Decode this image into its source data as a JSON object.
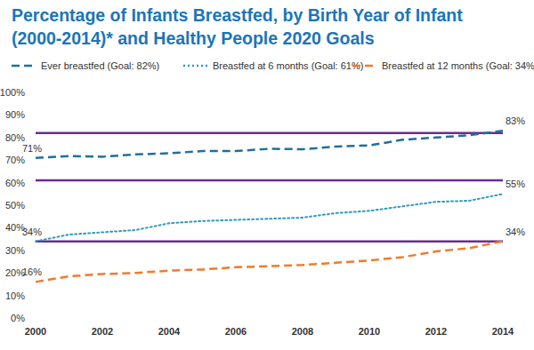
{
  "chart_data": {
    "type": "line",
    "title": [
      "Percentage of Infants Breastfed, by Birth Year of Infant",
      "(2000-2014)* and Healthy People 2020 Goals"
    ],
    "x": [
      2000,
      2001,
      2002,
      2003,
      2004,
      2005,
      2006,
      2007,
      2008,
      2009,
      2010,
      2011,
      2012,
      2013,
      2014
    ],
    "series": [
      {
        "name": "Ever breastfed (Goal: 82%)",
        "color": "#1f6f9f",
        "line_style": "dashed",
        "goal": 82,
        "values": [
          71,
          71.8,
          71.5,
          72.5,
          73,
          74,
          74,
          75,
          74.8,
          76,
          76.5,
          79,
          80,
          81,
          83
        ]
      },
      {
        "name": "Breastfed at 6 months (Goal: 61%)",
        "color": "#2f9bbf",
        "line_style": "dotted",
        "goal": 61,
        "values": [
          34,
          37,
          38,
          39,
          42,
          43,
          43.5,
          44,
          44.5,
          46.5,
          47.5,
          49.5,
          51.5,
          52,
          55
        ]
      },
      {
        "name": "Breastfed at 12 months (Goal: 34%)",
        "color": "#f07b2a",
        "line_style": "dashed",
        "goal": 34,
        "values": [
          16,
          18.5,
          19.5,
          20,
          21,
          21.5,
          22.5,
          23,
          23.5,
          24.5,
          25.5,
          27,
          29.5,
          31,
          34
        ]
      }
    ],
    "annotations": [
      {
        "text": "71%",
        "x": 2000,
        "y": 71
      },
      {
        "text": "83%",
        "x": 2014,
        "y": 83
      },
      {
        "text": "34%",
        "x": 2000,
        "y": 34
      },
      {
        "text": "55%",
        "x": 2014,
        "y": 55
      },
      {
        "text": "16%",
        "x": 2000,
        "y": 16
      },
      {
        "text": "34%",
        "x": 2014,
        "y": 34
      }
    ],
    "xlim": [
      2000,
      2014
    ],
    "xticks": [
      2000,
      2002,
      2004,
      2006,
      2008,
      2010,
      2012,
      2014
    ],
    "ylim": [
      0,
      100
    ],
    "yticks": [
      {
        "value": 0,
        "label": "0%"
      },
      {
        "value": 10,
        "label": "10%"
      },
      {
        "value": 20,
        "label": "20%"
      },
      {
        "value": 30,
        "label": "30%"
      },
      {
        "value": 40,
        "label": "40%"
      },
      {
        "value": 50,
        "label": "50%"
      },
      {
        "value": 60,
        "label": "60%"
      },
      {
        "value": 70,
        "label": "70%"
      },
      {
        "value": 80,
        "label": "80%"
      },
      {
        "value": 90,
        "label": "90%"
      },
      {
        "value": 100,
        "label": "100%"
      }
    ],
    "grid": false,
    "legend": "top"
  }
}
